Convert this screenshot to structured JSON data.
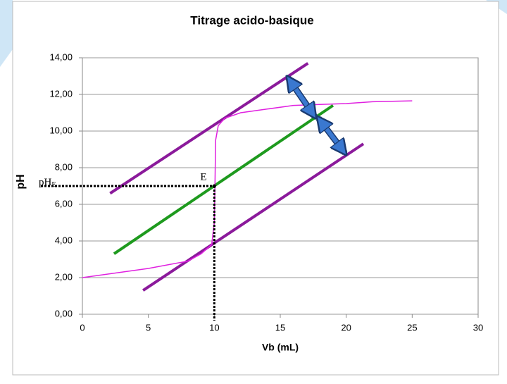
{
  "chart_data": {
    "type": "line",
    "title": "Titrage acido-basique",
    "x_label": "Vb (mL)",
    "y_label": "pH",
    "xlim": [
      0,
      30
    ],
    "xticks": [
      0,
      5,
      10,
      15,
      20,
      25,
      30
    ],
    "ylim": [
      0,
      14
    ],
    "yticks": [
      {
        "value": 0,
        "label": "0,00"
      },
      {
        "value": 2,
        "label": "2,00"
      },
      {
        "value": 4,
        "label": "4,00"
      },
      {
        "value": 6,
        "label": "6,00"
      },
      {
        "value": 8,
        "label": "8,00"
      },
      {
        "value": 10,
        "label": "10,00"
      },
      {
        "value": 12,
        "label": "12,00"
      },
      {
        "value": 14,
        "label": "14,00"
      }
    ],
    "grid": true,
    "series": [
      {
        "color": "#e020e0",
        "x": [
          0,
          5,
          8,
          9,
          9.8,
          10,
          10.05,
          10.1,
          10.3,
          10.8,
          12,
          14,
          16,
          18,
          20,
          22,
          25
        ],
        "values": [
          2.0,
          2.5,
          2.9,
          3.3,
          3.8,
          5.0,
          7.0,
          9.5,
          10.3,
          10.7,
          11.0,
          11.2,
          11.4,
          11.45,
          11.5,
          11.6,
          11.65
        ]
      }
    ],
    "lines": [
      {
        "color": "#8b1a9b",
        "x": [
          2.1,
          17.1
        ],
        "values": [
          6.6,
          13.7
        ]
      },
      {
        "color": "#1e9a1e",
        "x": [
          2.4,
          19.0
        ],
        "values": [
          3.3,
          11.4
        ]
      },
      {
        "color": "#8b1a9b",
        "x": [
          4.6,
          21.3
        ],
        "values": [
          1.3,
          9.3
        ]
      }
    ],
    "arrows": [
      {
        "color": "#3a78d0",
        "x": [
          15.6,
          17.6
        ],
        "values": [
          12.9,
          10.8
        ]
      },
      {
        "color": "#3a78d0",
        "x": [
          17.9,
          19.9
        ],
        "values": [
          10.7,
          8.8
        ]
      }
    ],
    "equivalence": {
      "x": 10,
      "y": 7,
      "label": "E",
      "y_label": "pH",
      "y_label_sub": "E"
    }
  }
}
